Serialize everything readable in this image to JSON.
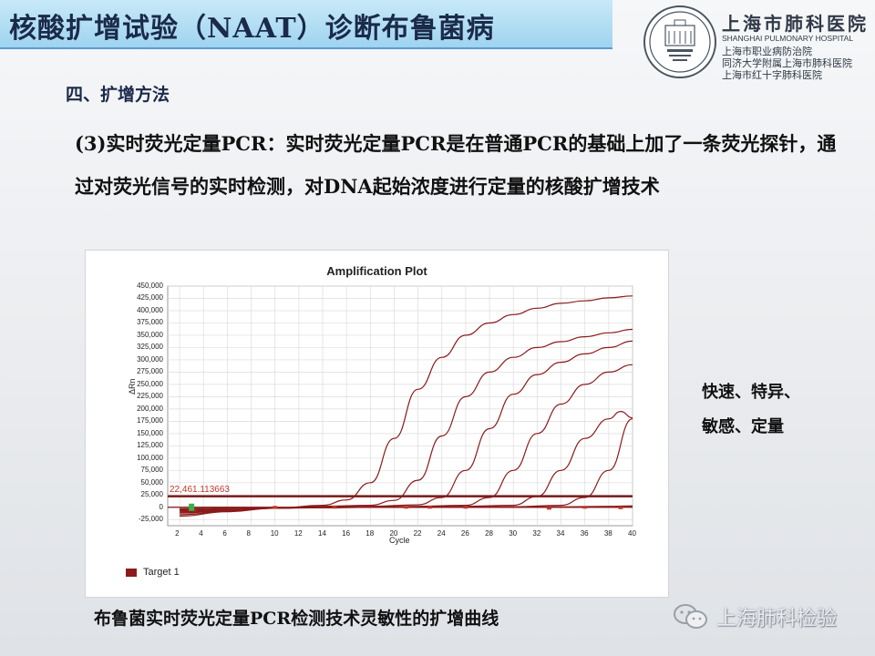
{
  "header": {
    "title": "核酸扩增试验（NAAT）诊断布鲁菌病"
  },
  "logo": {
    "name_cn": "上海市肺科医院",
    "name_en": "SHANGHAI PULMONARY HOSPITAL",
    "lines": [
      "上海市职业病防治院",
      "同济大学附属上海市肺科医院",
      "上海市红十字肺科医院"
    ]
  },
  "section": "四、扩增方法",
  "paragraph": "(3)实时荧光定量PCR：实时荧光定量PCR是在普通PCR的基础上加了一条荧光探针，通过对荧光信号的实时检测，对DNA起始浓度进行定量的核酸扩增技术",
  "side_note": [
    "快速、特异、",
    "敏感、定量"
  ],
  "caption": "布鲁菌实时荧光定量PCR检测技术灵敏性的扩增曲线",
  "watermark": "上海肺科检验",
  "chart_data": {
    "type": "line",
    "title": "Amplification Plot",
    "xlabel": "Cycle",
    "ylabel": "ΔRn",
    "xlim": [
      1,
      40
    ],
    "ylim": [
      -37500,
      450000
    ],
    "xticks": [
      2,
      4,
      6,
      8,
      10,
      12,
      14,
      16,
      18,
      20,
      22,
      24,
      26,
      28,
      30,
      32,
      34,
      36,
      38,
      40
    ],
    "yticks": [
      -25000,
      0,
      25000,
      50000,
      75000,
      100000,
      125000,
      150000,
      175000,
      200000,
      225000,
      250000,
      275000,
      300000,
      325000,
      350000,
      375000,
      400000,
      425000,
      450000
    ],
    "ytick_labels": [
      "-25,000",
      "0",
      "25,000",
      "50,000",
      "75,000",
      "100,000",
      "125,000",
      "150,000",
      "175,000",
      "200,000",
      "225,000",
      "250,000",
      "275,000",
      "300,000",
      "325,000",
      "350,000",
      "375,000",
      "400,000",
      "425,000",
      "450,000"
    ],
    "threshold": 22461.113663,
    "threshold_label": "22,461.113663",
    "legend": [
      "Target 1"
    ],
    "series_color": "#8b1a1a",
    "grid": true,
    "series": [
      {
        "x": [
          2,
          6,
          10,
          14,
          16,
          18,
          20,
          22,
          24,
          26,
          28,
          30,
          32,
          34,
          36,
          38,
          40
        ],
        "values": [
          -18000,
          -9000,
          -2000,
          4000,
          15000,
          50000,
          140000,
          240000,
          305000,
          350000,
          375000,
          392000,
          405000,
          415000,
          420000,
          426000,
          430000
        ]
      },
      {
        "x": [
          2,
          6,
          10,
          14,
          18,
          20,
          22,
          24,
          26,
          28,
          30,
          32,
          34,
          36,
          38,
          40
        ],
        "values": [
          -15000,
          -8000,
          -2000,
          2000,
          4000,
          14000,
          55000,
          145000,
          225000,
          275000,
          305000,
          325000,
          337000,
          347000,
          355000,
          362000
        ]
      },
      {
        "x": [
          2,
          6,
          10,
          14,
          18,
          22,
          24,
          26,
          28,
          30,
          32,
          34,
          36,
          38,
          40
        ],
        "values": [
          -12000,
          -7000,
          -2000,
          1000,
          2000,
          5000,
          20000,
          75000,
          160000,
          230000,
          270000,
          295000,
          312000,
          325000,
          338000
        ]
      },
      {
        "x": [
          2,
          6,
          10,
          14,
          18,
          22,
          26,
          28,
          30,
          32,
          34,
          36,
          38,
          40
        ],
        "values": [
          -10000,
          -6000,
          -2000,
          0,
          1000,
          2000,
          4000,
          20000,
          75000,
          150000,
          210000,
          250000,
          275000,
          290000
        ]
      },
      {
        "x": [
          2,
          6,
          10,
          14,
          18,
          22,
          26,
          30,
          32,
          34,
          36,
          38,
          39,
          40
        ],
        "values": [
          -8000,
          -5000,
          -2000,
          0,
          0,
          1000,
          2000,
          4000,
          22000,
          75000,
          140000,
          180000,
          195000,
          182000
        ]
      },
      {
        "x": [
          2,
          6,
          10,
          14,
          18,
          22,
          26,
          30,
          34,
          36,
          38,
          40
        ],
        "values": [
          -6000,
          -4000,
          -2000,
          -1000,
          0,
          0,
          1000,
          1000,
          4000,
          20000,
          75000,
          180000
        ]
      },
      {
        "x": [
          2,
          6,
          10,
          14,
          18,
          22,
          26,
          30,
          34,
          38,
          40
        ],
        "values": [
          -4000,
          -2000,
          -1000,
          -1000,
          0,
          0,
          0,
          1000,
          1000,
          2000,
          3000
        ]
      },
      {
        "x": [
          2,
          6,
          10,
          14,
          18,
          22,
          26,
          30,
          34,
          38,
          40
        ],
        "values": [
          -3000,
          -1500,
          -1000,
          0,
          0,
          0,
          0,
          0,
          0,
          0,
          1000
        ]
      }
    ],
    "baseline_markers": [
      {
        "x": 10,
        "y": 0
      },
      {
        "x": 15,
        "y": 0
      },
      {
        "x": 21,
        "y": 0
      },
      {
        "x": 23,
        "y": 0
      },
      {
        "x": 26,
        "y": 0
      },
      {
        "x": 33,
        "y": -2000
      },
      {
        "x": 36,
        "y": 0
      },
      {
        "x": 39,
        "y": -1000
      }
    ],
    "green_marker": {
      "x": 3,
      "y": 0
    }
  }
}
